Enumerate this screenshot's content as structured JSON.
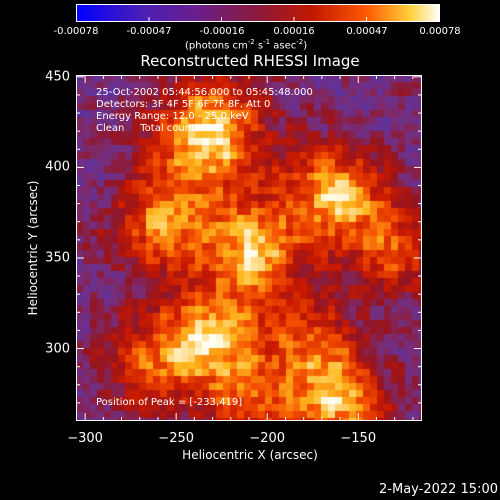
{
  "colorbar": {
    "ticks": [
      "-0.00078",
      "-0.00047",
      "-0.00016",
      "0.00016",
      "0.00047",
      "0.00078"
    ],
    "units": [
      "(photons cm",
      "-2",
      " s",
      "-1",
      " asec",
      "-2",
      ")"
    ]
  },
  "title": "Reconstructed RHESSI Image",
  "annotations": {
    "time_range": "25-Oct-2002 05:44:56.000 to 05:45:48.000",
    "detectors": "Detectors: 3F 4F 5F 6F 7F 8F, Att 0",
    "energy": "Energy Range: 12.0 - 25.0 keV",
    "clean": "Clean     Total counts: 501.",
    "peak": "Position of Peak = [-233,419]"
  },
  "xlabel": "Heliocentric X (arcsec)",
  "ylabel": "Heliocentric Y (arcsec)",
  "timestamp": "2-May-2022 15:00",
  "chart_data": {
    "type": "heatmap",
    "title": "Reconstructed RHESSI Image",
    "xlabel": "Heliocentric X (arcsec)",
    "ylabel": "Heliocentric Y (arcsec)",
    "xlim": [
      -305,
      -115
    ],
    "ylim": [
      260,
      451
    ],
    "xticks": [
      -300,
      -250,
      -200,
      -150
    ],
    "yticks": [
      300,
      350,
      400,
      450
    ],
    "colorbar_range": [
      -0.00078,
      0.00078
    ],
    "colormap": "purple-red-yellow-white",
    "peak": [
      -233,
      419
    ],
    "hot_spots": [
      {
        "x": -233,
        "y": 419,
        "level": 1.0
      },
      {
        "x": -162,
        "y": 385,
        "level": 0.85
      },
      {
        "x": -160,
        "y": 268,
        "level": 0.85
      },
      {
        "x": -232,
        "y": 303,
        "level": 0.8
      },
      {
        "x": -258,
        "y": 371,
        "level": 0.7
      },
      {
        "x": -208,
        "y": 355,
        "level": 0.65
      },
      {
        "x": -130,
        "y": 355,
        "level": 0.6
      },
      {
        "x": -175,
        "y": 300,
        "level": 0.55
      },
      {
        "x": -268,
        "y": 292,
        "level": 0.55
      },
      {
        "x": -210,
        "y": 268,
        "level": 0.5
      }
    ]
  }
}
